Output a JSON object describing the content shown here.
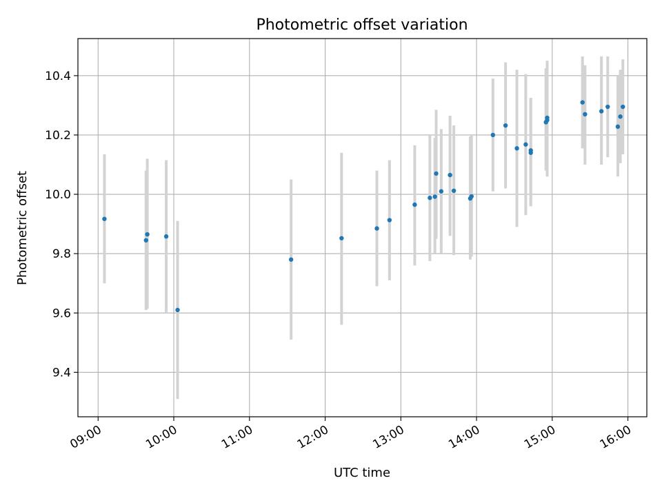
{
  "chart_data": {
    "type": "scatter",
    "title": "Photometric offset variation",
    "xlabel": "UTC time",
    "ylabel": "Photometric offset",
    "x_ticks": [
      "09:00",
      "10:00",
      "11:00",
      "12:00",
      "13:00",
      "14:00",
      "15:00",
      "16:00"
    ],
    "y_ticks": [
      "9.4",
      "9.6",
      "9.8",
      "10.0",
      "10.2",
      "10.4"
    ],
    "xlim": [
      "08:44",
      "16:15"
    ],
    "ylim": [
      9.25,
      10.525
    ],
    "grid": true,
    "marker_color": "#1f77b4",
    "errorbar_color": "#d3d3d3",
    "points": [
      {
        "t": "09:05",
        "y": 9.917,
        "lo": 9.7,
        "hi": 10.135
      },
      {
        "t": "09:38",
        "y": 9.845,
        "lo": 9.61,
        "hi": 10.08
      },
      {
        "t": "09:39",
        "y": 9.865,
        "lo": 9.615,
        "hi": 10.12
      },
      {
        "t": "09:54",
        "y": 9.858,
        "lo": 9.6,
        "hi": 10.115
      },
      {
        "t": "10:03",
        "y": 9.61,
        "lo": 9.31,
        "hi": 9.91
      },
      {
        "t": "11:33",
        "y": 9.78,
        "lo": 9.51,
        "hi": 10.05
      },
      {
        "t": "12:13",
        "y": 9.852,
        "lo": 9.56,
        "hi": 10.14
      },
      {
        "t": "12:41",
        "y": 9.885,
        "lo": 9.69,
        "hi": 10.08
      },
      {
        "t": "12:51",
        "y": 9.913,
        "lo": 9.71,
        "hi": 10.115
      },
      {
        "t": "13:11",
        "y": 9.965,
        "lo": 9.76,
        "hi": 10.165
      },
      {
        "t": "13:23",
        "y": 9.988,
        "lo": 9.775,
        "hi": 10.2
      },
      {
        "t": "13:27",
        "y": 9.992,
        "lo": 9.8,
        "hi": 10.19
      },
      {
        "t": "13:28",
        "y": 10.07,
        "lo": 9.85,
        "hi": 10.285
      },
      {
        "t": "13:32",
        "y": 10.01,
        "lo": 9.8,
        "hi": 10.22
      },
      {
        "t": "13:39",
        "y": 10.065,
        "lo": 9.86,
        "hi": 10.265
      },
      {
        "t": "13:42",
        "y": 10.012,
        "lo": 9.795,
        "hi": 10.232
      },
      {
        "t": "13:55",
        "y": 9.986,
        "lo": 9.78,
        "hi": 10.195
      },
      {
        "t": "13:56",
        "y": 9.993,
        "lo": 9.79,
        "hi": 10.2
      },
      {
        "t": "14:13",
        "y": 10.2,
        "lo": 10.01,
        "hi": 10.39
      },
      {
        "t": "14:23",
        "y": 10.232,
        "lo": 10.02,
        "hi": 10.445
      },
      {
        "t": "14:32",
        "y": 10.155,
        "lo": 9.89,
        "hi": 10.42
      },
      {
        "t": "14:39",
        "y": 10.168,
        "lo": 9.93,
        "hi": 10.405
      },
      {
        "t": "14:43",
        "y": 10.148,
        "lo": 9.96,
        "hi": 10.325
      },
      {
        "t": "14:43",
        "y": 10.14,
        "lo": 9.96,
        "hi": 10.325
      },
      {
        "t": "14:55",
        "y": 10.243,
        "lo": 10.08,
        "hi": 10.425
      },
      {
        "t": "14:56",
        "y": 10.258,
        "lo": 10.06,
        "hi": 10.45
      },
      {
        "t": "14:56",
        "y": 10.25,
        "lo": 10.06,
        "hi": 10.45
      },
      {
        "t": "15:24",
        "y": 10.31,
        "lo": 10.155,
        "hi": 10.465
      },
      {
        "t": "15:26",
        "y": 10.27,
        "lo": 10.1,
        "hi": 10.435
      },
      {
        "t": "15:39",
        "y": 10.28,
        "lo": 10.1,
        "hi": 10.465
      },
      {
        "t": "15:44",
        "y": 10.295,
        "lo": 10.125,
        "hi": 10.465
      },
      {
        "t": "15:52",
        "y": 10.228,
        "lo": 10.06,
        "hi": 10.4
      },
      {
        "t": "15:54",
        "y": 10.262,
        "lo": 10.105,
        "hi": 10.42
      },
      {
        "t": "15:56",
        "y": 10.295,
        "lo": 10.135,
        "hi": 10.455
      }
    ]
  }
}
